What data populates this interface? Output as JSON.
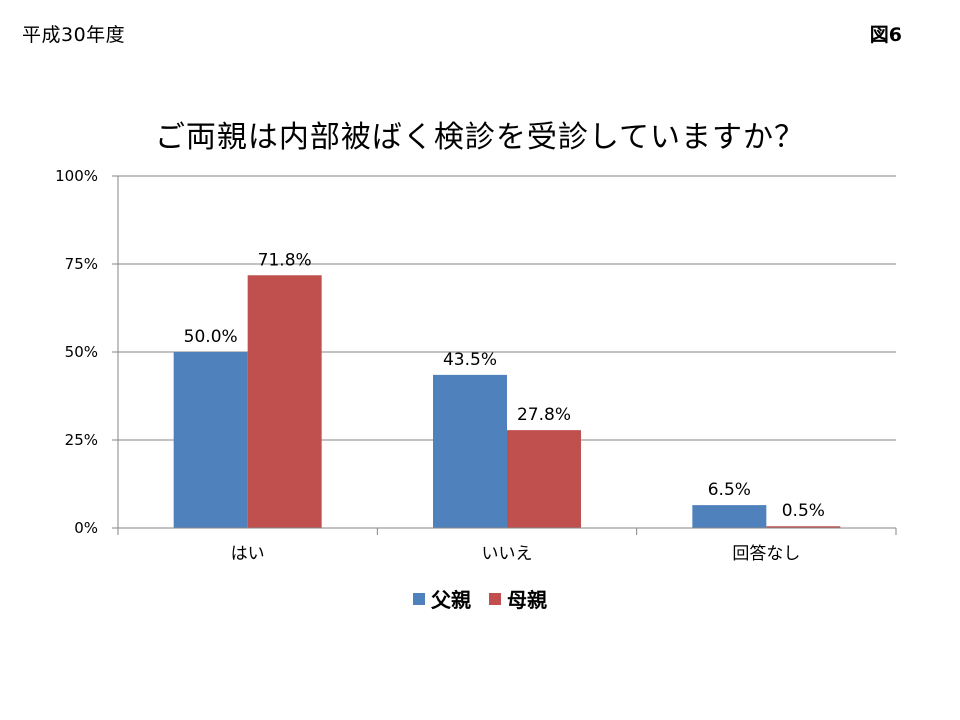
{
  "header": {
    "left_text": "平成30年度",
    "right_text": "図6"
  },
  "colors": {
    "father": "#4f81bd",
    "mother": "#c0504d",
    "grid": "#868686"
  },
  "chart_data": {
    "type": "bar",
    "title": "ご両親は内部被ばく検診を受診していますか？",
    "categories": [
      "はい",
      "いいえ",
      "回答なし"
    ],
    "series": [
      {
        "name": "父親",
        "values": [
          50.0,
          43.5,
          6.5
        ],
        "labels": [
          "50.0%",
          "43.5%",
          "6.5%"
        ]
      },
      {
        "name": "母親",
        "values": [
          71.8,
          27.8,
          0.5
        ],
        "labels": [
          "71.8%",
          "27.8%",
          "0.5%"
        ]
      }
    ],
    "ylim": [
      0,
      100
    ],
    "yticks": [
      0,
      25,
      50,
      75,
      100
    ],
    "ytick_labels": [
      "0%",
      "25%",
      "50%",
      "75%",
      "100%"
    ],
    "grid": true,
    "legend_position": "bottom",
    "xlabel": "",
    "ylabel": ""
  }
}
